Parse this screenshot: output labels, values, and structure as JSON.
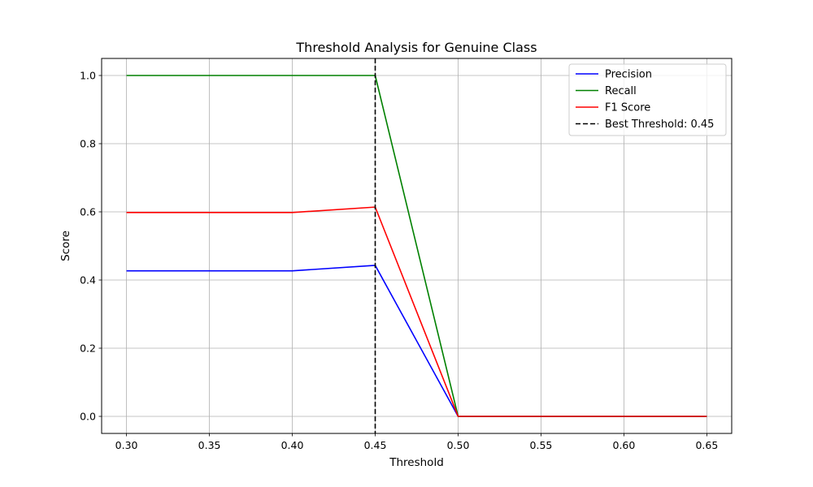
{
  "chart_data": {
    "type": "line",
    "title": "Threshold Analysis for Genuine Class",
    "xlabel": "Threshold",
    "ylabel": "Score",
    "xlim": [
      0.285,
      0.665
    ],
    "ylim": [
      -0.05,
      1.05
    ],
    "xticks": [
      0.3,
      0.35,
      0.4,
      0.45,
      0.5,
      0.55,
      0.6,
      0.65
    ],
    "xtick_labels": [
      "0.30",
      "0.35",
      "0.40",
      "0.45",
      "0.50",
      "0.55",
      "0.60",
      "0.65"
    ],
    "yticks": [
      0.0,
      0.2,
      0.4,
      0.6,
      0.8,
      1.0
    ],
    "ytick_labels": [
      "0.0",
      "0.2",
      "0.4",
      "0.6",
      "0.8",
      "1.0"
    ],
    "grid": true,
    "legend_position": "top-right",
    "x": [
      0.3,
      0.35,
      0.4,
      0.45,
      0.5,
      0.55,
      0.6,
      0.65
    ],
    "series": [
      {
        "name": "Precision",
        "color": "#0000ff",
        "style": "solid",
        "values": [
          0.427,
          0.427,
          0.427,
          0.443,
          0.0,
          0.0,
          0.0,
          0.0
        ]
      },
      {
        "name": "Recall",
        "color": "#008000",
        "style": "solid",
        "values": [
          1.0,
          1.0,
          1.0,
          1.0,
          0.0,
          0.0,
          0.0,
          0.0
        ]
      },
      {
        "name": "F1 Score",
        "color": "#ff0000",
        "style": "solid",
        "values": [
          0.598,
          0.598,
          0.598,
          0.614,
          0.0,
          0.0,
          0.0,
          0.0
        ]
      }
    ],
    "vline": {
      "name": "Best Threshold: 0.45",
      "x": 0.45,
      "color": "#000000",
      "style": "dashed"
    }
  }
}
